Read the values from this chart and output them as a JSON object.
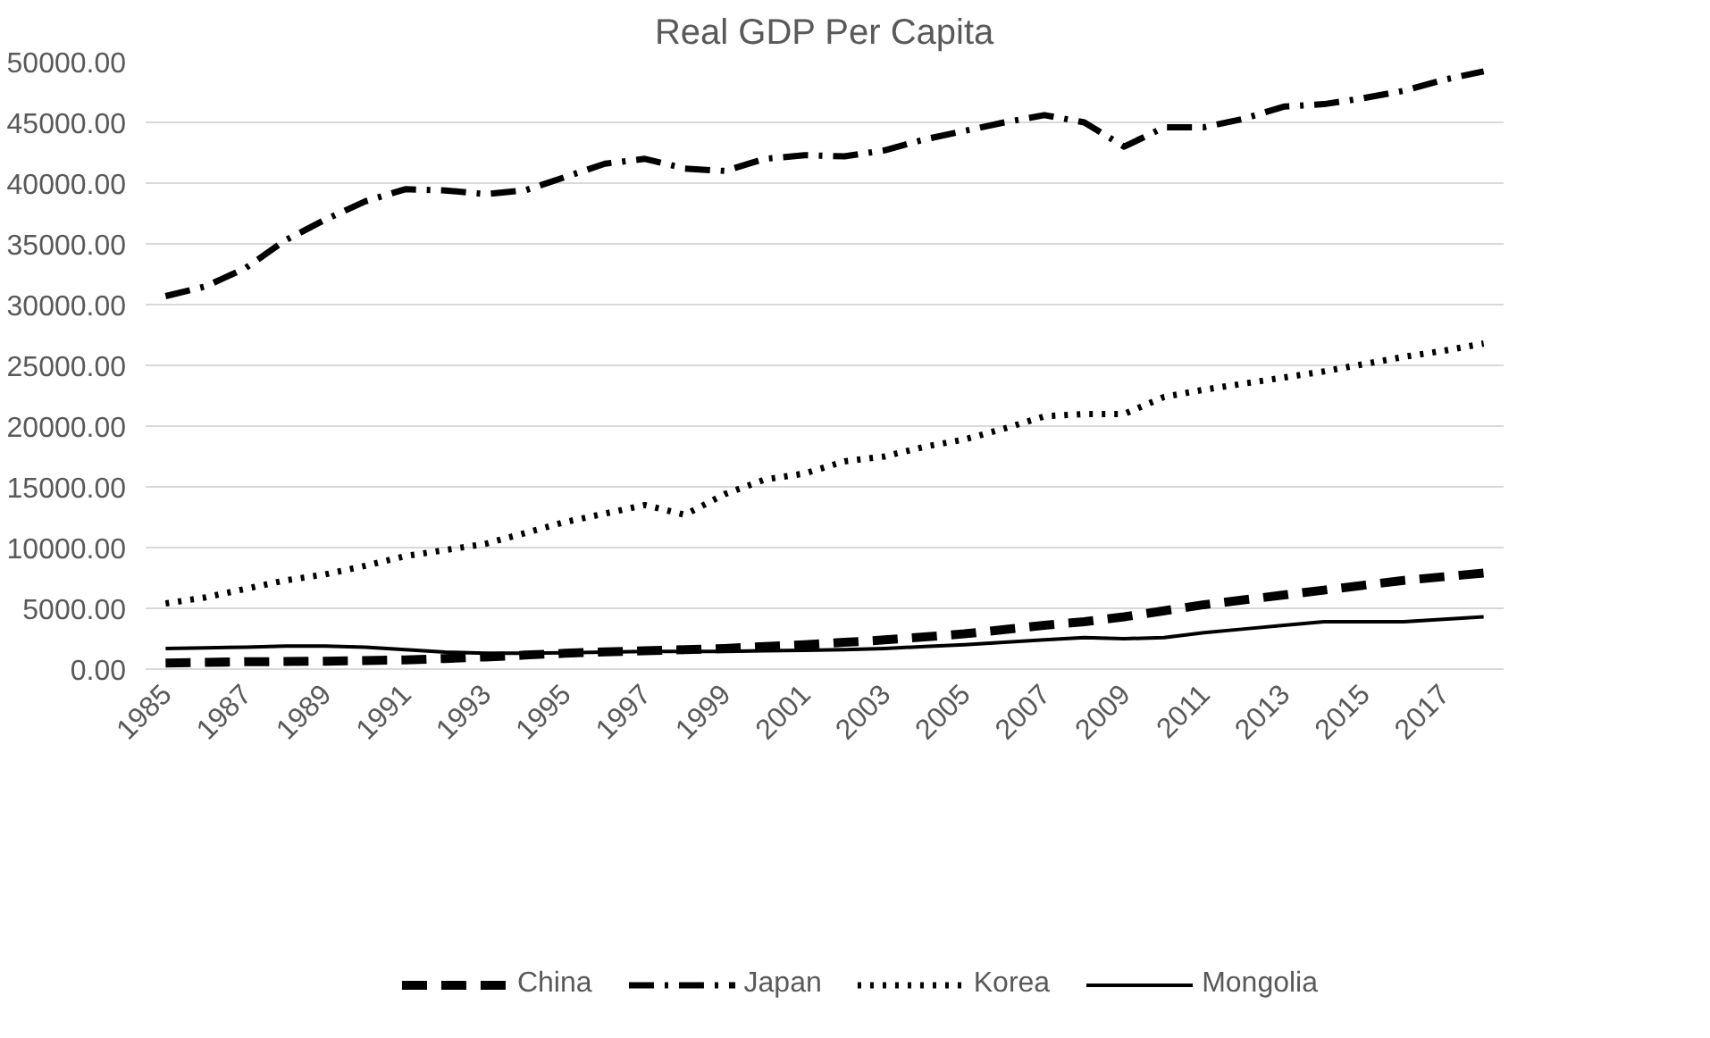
{
  "chart_data": {
    "type": "line",
    "title": "Real GDP Per Capita",
    "x": [
      1985,
      1986,
      1987,
      1988,
      1989,
      1990,
      1991,
      1992,
      1993,
      1994,
      1995,
      1996,
      1997,
      1998,
      1999,
      2000,
      2001,
      2002,
      2003,
      2004,
      2005,
      2006,
      2007,
      2008,
      2009,
      2010,
      2011,
      2012,
      2013,
      2014,
      2015,
      2016,
      2017,
      2018
    ],
    "xlim": [
      1984.5,
      2018.5
    ],
    "xticks": [
      1985,
      1987,
      1989,
      1991,
      1993,
      1995,
      1997,
      1999,
      2001,
      2003,
      2005,
      2007,
      2009,
      2011,
      2013,
      2015,
      2017
    ],
    "ylim": [
      0,
      50000
    ],
    "yticks": [
      {
        "value": 0,
        "label": "0.00"
      },
      {
        "value": 5000,
        "label": "5000.00"
      },
      {
        "value": 10000,
        "label": "10000.00"
      },
      {
        "value": 15000,
        "label": "15000.00"
      },
      {
        "value": 20000,
        "label": "20000.00"
      },
      {
        "value": 25000,
        "label": "25000.00"
      },
      {
        "value": 30000,
        "label": "30000.00"
      },
      {
        "value": 35000,
        "label": "35000.00"
      },
      {
        "value": 40000,
        "label": "40000.00"
      },
      {
        "value": 45000,
        "label": "45000.00"
      },
      {
        "value": 50000,
        "label": "50000.00"
      }
    ],
    "grid": "y",
    "legend": "bottom",
    "marker": "none",
    "series": [
      {
        "name": "China",
        "color": "#000000",
        "line_style": "dashed",
        "values": [
          500,
          550,
          600,
          620,
          650,
          700,
          750,
          870,
          1000,
          1150,
          1300,
          1420,
          1500,
          1600,
          1700,
          1850,
          2000,
          2200,
          2400,
          2650,
          2900,
          3250,
          3600,
          3900,
          4300,
          4800,
          5300,
          5700,
          6100,
          6500,
          6900,
          7300,
          7600,
          7900
        ]
      },
      {
        "name": "Japan",
        "color": "#000000",
        "line_style": "dashdot",
        "values": [
          30700,
          31500,
          33000,
          35300,
          37000,
          38500,
          39500,
          39400,
          39100,
          39400,
          40500,
          41600,
          42000,
          41200,
          41000,
          42000,
          42300,
          42200,
          42700,
          43600,
          44300,
          45000,
          45600,
          45000,
          43000,
          44600,
          44600,
          45300,
          46300,
          46500,
          47000,
          47600,
          48500,
          49200
        ]
      },
      {
        "name": "Korea",
        "color": "#000000",
        "line_style": "dotted",
        "values": [
          5400,
          5900,
          6600,
          7300,
          7800,
          8500,
          9300,
          9800,
          10300,
          11200,
          12100,
          12800,
          13500,
          12700,
          14400,
          15600,
          16100,
          17100,
          17500,
          18300,
          18900,
          19800,
          20800,
          21000,
          21000,
          22400,
          23000,
          23500,
          24000,
          24500,
          25100,
          25700,
          26200,
          26800
        ]
      },
      {
        "name": "Mongolia",
        "color": "#000000",
        "line_style": "solid",
        "values": [
          1700,
          1750,
          1800,
          1900,
          1900,
          1800,
          1600,
          1400,
          1300,
          1300,
          1350,
          1400,
          1450,
          1450,
          1450,
          1500,
          1550,
          1600,
          1700,
          1850,
          2000,
          2200,
          2400,
          2600,
          2500,
          2600,
          3000,
          3300,
          3600,
          3900,
          3900,
          3900,
          4100,
          4300
        ]
      }
    ]
  }
}
